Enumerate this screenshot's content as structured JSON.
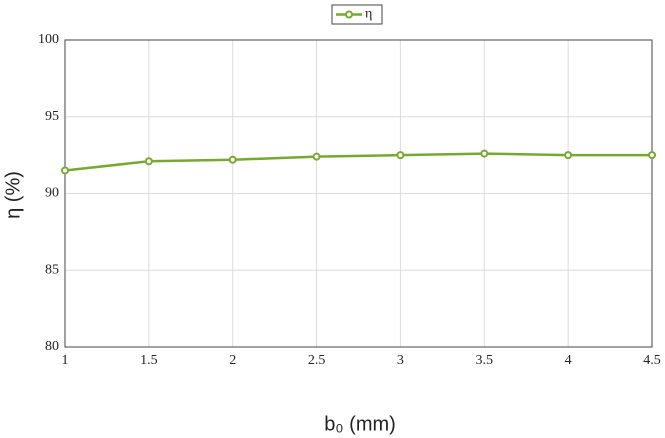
{
  "chart_data": {
    "type": "line",
    "x": [
      1,
      1.5,
      2,
      2.5,
      3,
      3.5,
      4,
      4.5
    ],
    "series": [
      {
        "name": "η",
        "color": "#77a832",
        "values": [
          91.5,
          92.1,
          92.2,
          92.4,
          92.5,
          92.6,
          92.5,
          92.5
        ]
      }
    ],
    "xlim": [
      1,
      4.5
    ],
    "xticks": [
      1,
      1.5,
      2,
      2.5,
      3,
      3.5,
      4,
      4.5
    ],
    "ylim": [
      80,
      100
    ],
    "yticks": [
      80,
      85,
      90,
      95,
      100
    ],
    "xlabel": "b₀ (mm)",
    "ylabel": "η (%)",
    "grid": true,
    "legend": "top"
  }
}
